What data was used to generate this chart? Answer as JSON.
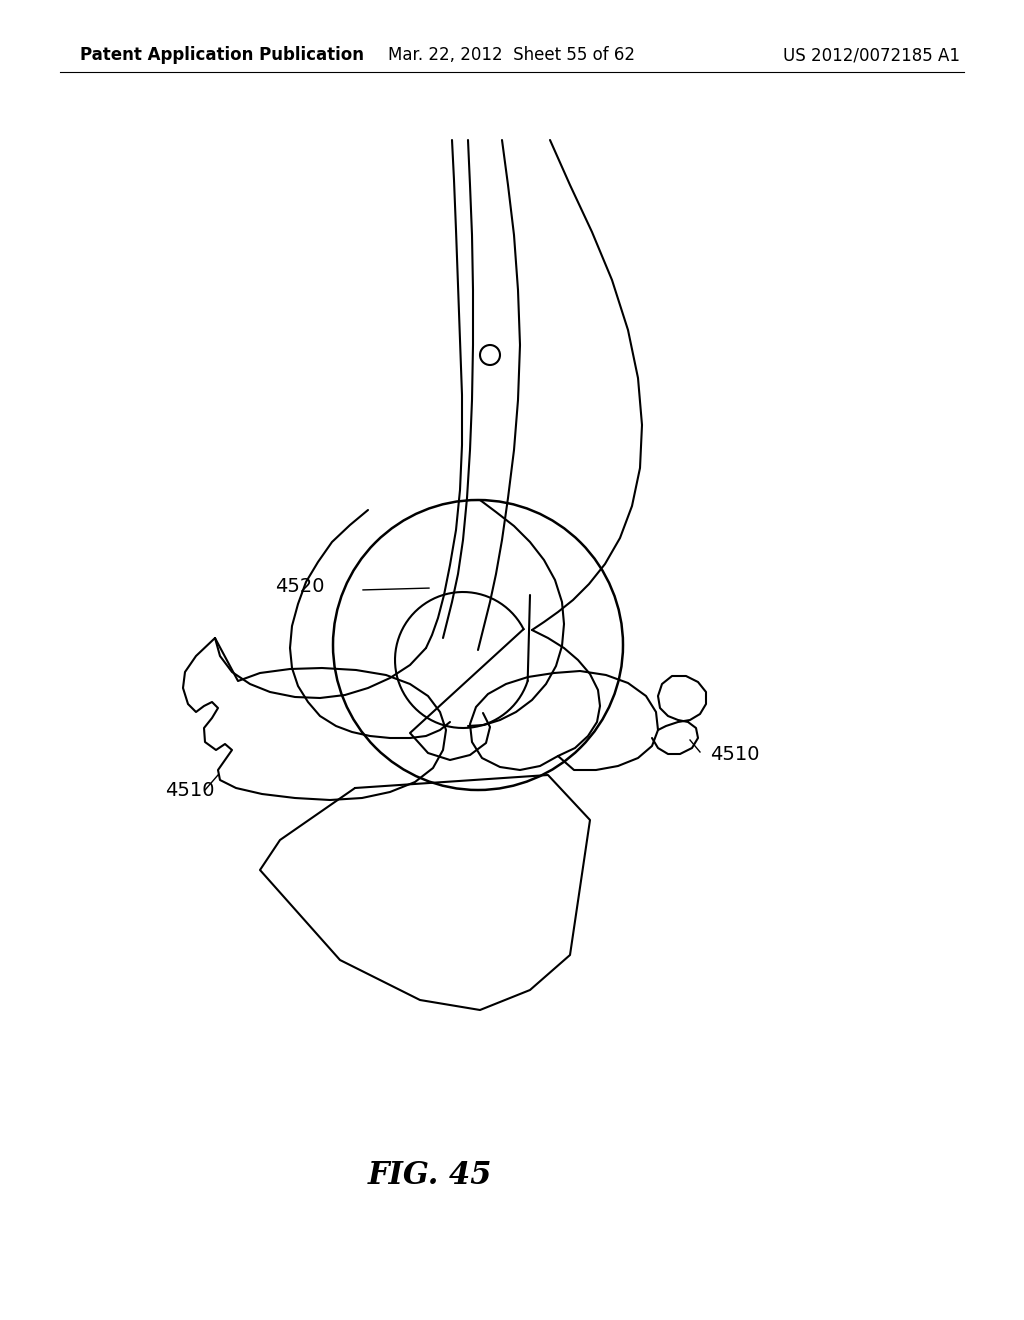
{
  "title": "FIG. 45",
  "header_left": "Patent Application Publication",
  "header_center": "Mar. 22, 2012  Sheet 55 of 62",
  "header_right": "US 2012/0072185 A1",
  "label_4520": "4520",
  "label_4510_left": "4510",
  "label_4510_right": "4510",
  "bg_color": "#ffffff",
  "line_color": "#000000",
  "fig_title_fontsize": 22,
  "header_fontsize": 12,
  "label_fontsize": 14
}
